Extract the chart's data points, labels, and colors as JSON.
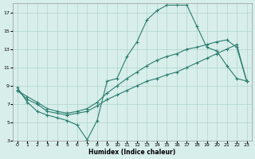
{
  "xlabel": "Humidex (Indice chaleur)",
  "bg_color": "#d8eeeb",
  "grid_color": "#b0d4ce",
  "line_color": "#2a7d6e",
  "xlim": [
    -0.5,
    23.5
  ],
  "ylim": [
    3,
    18
  ],
  "xticks": [
    0,
    1,
    2,
    3,
    4,
    5,
    6,
    7,
    8,
    9,
    10,
    11,
    12,
    13,
    14,
    15,
    16,
    17,
    18,
    19,
    20,
    21,
    22,
    23
  ],
  "yticks": [
    3,
    5,
    7,
    9,
    11,
    13,
    15,
    17
  ],
  "line1_x": [
    0,
    1,
    2,
    3,
    4,
    5,
    6,
    7,
    8,
    9,
    10,
    11,
    12,
    13,
    14,
    15,
    16,
    17,
    18,
    19,
    20,
    21,
    22,
    23
  ],
  "line1_y": [
    8.8,
    7.2,
    6.2,
    5.8,
    5.5,
    5.2,
    4.7,
    3.1,
    5.2,
    9.5,
    9.8,
    12.2,
    13.8,
    16.2,
    17.2,
    17.8,
    17.8,
    17.8,
    15.5,
    13.2,
    12.8,
    11.2,
    9.8,
    9.5
  ],
  "line2_x": [
    0,
    1,
    2,
    3,
    4,
    5,
    6,
    7,
    8,
    9,
    10,
    11,
    12,
    13,
    14,
    15,
    16,
    17,
    18,
    19,
    20,
    21,
    22,
    23
  ],
  "line2_y": [
    8.5,
    7.8,
    7.2,
    6.5,
    6.2,
    6.0,
    6.2,
    6.5,
    7.2,
    8.2,
    9.0,
    9.8,
    10.5,
    11.2,
    11.8,
    12.2,
    12.5,
    13.0,
    13.2,
    13.5,
    13.8,
    14.0,
    13.2,
    9.5
  ],
  "line3_x": [
    0,
    1,
    2,
    3,
    4,
    5,
    6,
    7,
    8,
    9,
    10,
    11,
    12,
    13,
    14,
    15,
    16,
    17,
    18,
    19,
    20,
    21,
    22,
    23
  ],
  "line3_y": [
    8.5,
    7.5,
    7.0,
    6.2,
    6.0,
    5.8,
    6.0,
    6.2,
    6.8,
    7.5,
    8.0,
    8.5,
    9.0,
    9.5,
    9.8,
    10.2,
    10.5,
    11.0,
    11.5,
    12.0,
    12.5,
    13.0,
    13.5,
    9.5
  ]
}
